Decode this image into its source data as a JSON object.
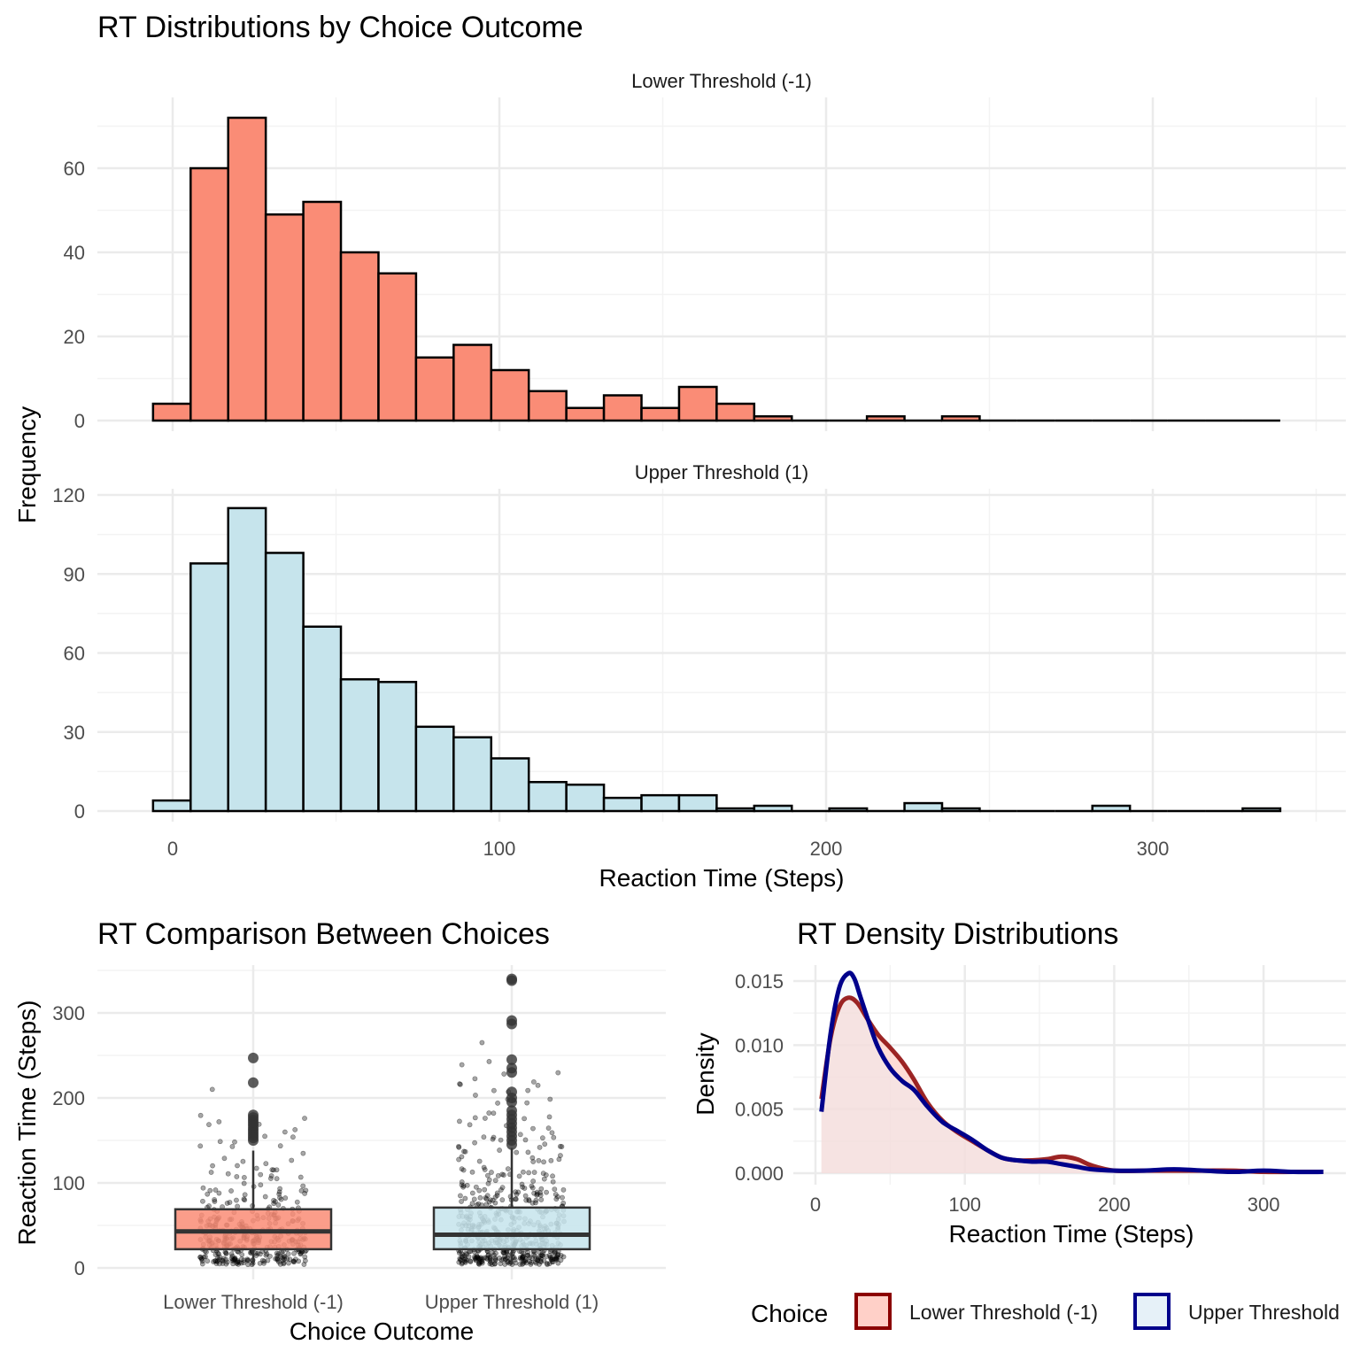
{
  "chart_data": [
    {
      "type": "bar",
      "title": "RT Distributions by Choice Outcome",
      "xlabel": "Reaction Time (Steps)",
      "ylabel": "Frequency",
      "x_ticks": [
        0,
        100,
        200,
        300
      ],
      "bin_width": 11.5,
      "bin_start": -6,
      "grid": true,
      "panels": [
        {
          "name": "Lower Threshold (-1)",
          "color": "#FA8C76",
          "ylim": [
            0,
            72
          ],
          "y_ticks": [
            0,
            20,
            40,
            60
          ],
          "values": [
            4,
            60,
            72,
            49,
            52,
            40,
            35,
            15,
            18,
            12,
            7,
            3,
            6,
            3,
            8,
            4,
            1,
            0,
            0,
            1,
            0,
            1,
            0,
            0,
            0,
            0,
            0,
            0,
            0,
            0
          ]
        },
        {
          "name": "Upper Threshold (1)",
          "color": "#C6E4EC",
          "ylim": [
            0,
            122
          ],
          "y_ticks": [
            0,
            30,
            60,
            90,
            120
          ],
          "values": [
            4,
            94,
            115,
            98,
            70,
            50,
            49,
            32,
            28,
            20,
            11,
            10,
            5,
            6,
            6,
            1,
            2,
            0,
            1,
            0,
            3,
            1,
            0,
            0,
            0,
            2,
            0,
            0,
            0,
            1
          ]
        }
      ]
    },
    {
      "type": "box",
      "title": "RT Comparison Between Choices",
      "xlabel": "Choice Outcome",
      "ylabel": "Reaction Time (Steps)",
      "categories": [
        "Lower Threshold (-1)",
        "Upper Threshold (1)"
      ],
      "colors": [
        "#FA8C76",
        "#C6E4EC"
      ],
      "ylim": [
        0,
        350
      ],
      "y_ticks": [
        0,
        100,
        200,
        300
      ],
      "boxes": [
        {
          "q1": 22,
          "median": 43,
          "q3": 69,
          "whisker_low": 4,
          "whisker_high": 138,
          "outliers": [
            150,
            153,
            156,
            159,
            162,
            165,
            168,
            171,
            174,
            177,
            180,
            218,
            247
          ]
        },
        {
          "q1": 22,
          "median": 39,
          "q3": 71,
          "whisker_low": 4,
          "whisker_high": 141,
          "outliers": [
            145,
            150,
            155,
            160,
            165,
            170,
            175,
            180,
            185,
            195,
            200,
            207,
            230,
            235,
            245,
            287,
            291,
            338,
            340
          ]
        }
      ]
    },
    {
      "type": "area",
      "title": "RT Density Distributions",
      "xlabel": "Reaction Time (Steps)",
      "ylabel": "Density",
      "xlim": [
        0,
        340
      ],
      "ylim": [
        0,
        0.0155
      ],
      "x_ticks": [
        0,
        100,
        200,
        300
      ],
      "y_ticks": [
        "0.000",
        "0.005",
        "0.010",
        "0.015"
      ],
      "legend_title": "Choice",
      "legend_position": "bottom",
      "series": [
        {
          "name": "Lower Threshold (-1)",
          "line_color": "#8B0000",
          "fill_color": "#FFD0C8",
          "x": [
            4,
            10,
            16,
            22,
            28,
            35,
            42,
            50,
            58,
            66,
            75,
            85,
            95,
            105,
            115,
            125,
            135,
            145,
            155,
            165,
            175,
            185,
            200,
            220,
            240,
            260,
            280,
            300,
            320,
            340
          ],
          "y": [
            0.0058,
            0.0105,
            0.013,
            0.0137,
            0.0133,
            0.012,
            0.0108,
            0.0098,
            0.0087,
            0.0073,
            0.0055,
            0.0041,
            0.0032,
            0.0025,
            0.0018,
            0.0012,
            0.001,
            0.001,
            0.0011,
            0.0013,
            0.0011,
            0.0006,
            0.0002,
            0.0002,
            0.0002,
            0.0002,
            0.0002,
            0.0001,
            0.0001,
            0.0001
          ]
        },
        {
          "name": "Upper Threshold",
          "line_color": "#00008B",
          "fill_color": "#E6F1F8",
          "x": [
            4,
            10,
            16,
            22,
            26,
            30,
            36,
            42,
            50,
            58,
            66,
            75,
            85,
            95,
            105,
            115,
            125,
            135,
            145,
            155,
            165,
            175,
            185,
            200,
            220,
            240,
            260,
            280,
            300,
            320,
            340
          ],
          "y": [
            0.0048,
            0.0108,
            0.0145,
            0.0156,
            0.0152,
            0.0138,
            0.0117,
            0.0098,
            0.0082,
            0.0072,
            0.0065,
            0.0052,
            0.004,
            0.0033,
            0.0026,
            0.0018,
            0.0012,
            0.001,
            0.0009,
            0.0009,
            0.0007,
            0.0005,
            0.0003,
            0.0002,
            0.0002,
            0.0003,
            0.0002,
            0.0001,
            0.0002,
            0.0001,
            0.0001
          ]
        }
      ]
    }
  ]
}
